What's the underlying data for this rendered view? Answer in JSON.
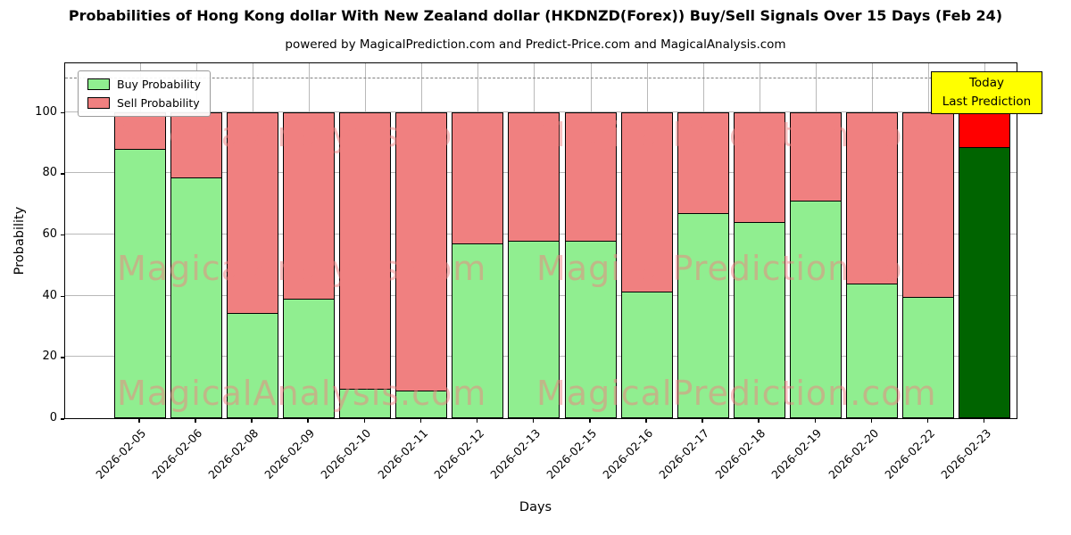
{
  "page": {
    "title": "Probabilities of Hong Kong dollar With New Zealand dollar (HKDNZD(Forex)) Buy/Sell Signals Over 15 Days (Feb 24)",
    "subtitle": "powered by MagicalPrediction.com and Predict-Price.com and MagicalAnalysis.com"
  },
  "legend": {
    "buy_label": "Buy Probability",
    "sell_label": "Sell Probability"
  },
  "annotation": {
    "line1": "Today",
    "line2": "Last Prediction"
  },
  "watermarks": {
    "left": "MagicalAnalysis.com",
    "right": "MagicalPrediction.com"
  },
  "chart_data": {
    "type": "bar",
    "stacked": true,
    "title": "Probabilities of Hong Kong dollar With New Zealand dollar (HKDNZD(Forex)) Buy/Sell Signals Over 15 Days (Feb 24)",
    "subtitle": "powered by MagicalPrediction.com and Predict-Price.com and MagicalAnalysis.com",
    "xlabel": "Days",
    "ylabel": "Probability",
    "categories": [
      "2026-02-05",
      "2026-02-06",
      "2026-02-08",
      "2026-02-09",
      "2026-02-10",
      "2026-02-11",
      "2026-02-12",
      "2026-02-13",
      "2026-02-15",
      "2026-02-16",
      "2026-02-17",
      "2026-02-18",
      "2026-02-19",
      "2026-02-20",
      "2026-02-22",
      "2026-02-23"
    ],
    "series": [
      {
        "name": "Buy Probability",
        "color": "#90EE90",
        "values": [
          88,
          78.5,
          34.5,
          39,
          9.5,
          9,
          57,
          58,
          58,
          41.5,
          67,
          64,
          71,
          44,
          39.5,
          88.5
        ]
      },
      {
        "name": "Sell Probability",
        "color": "#F08080",
        "values": [
          12,
          21.5,
          65.5,
          61,
          90.5,
          91,
          43,
          42,
          42,
          58.5,
          33,
          36,
          29,
          56,
          60.5,
          11.5
        ]
      }
    ],
    "last_bar_colors": {
      "buy": "#006400",
      "sell": "#FF0000"
    },
    "yticks": [
      0,
      20,
      40,
      60,
      80,
      100
    ],
    "ylim": [
      0,
      116.5
    ],
    "dashed_line_y": 111,
    "grid": true,
    "legend_position": "upper left",
    "bar_edge_color": "#000000"
  }
}
